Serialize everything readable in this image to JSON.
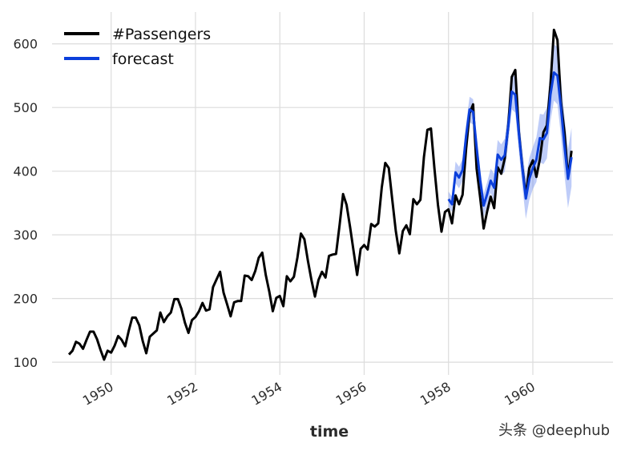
{
  "chart_data": {
    "type": "line",
    "title": "",
    "xlabel": "time",
    "ylabel": "",
    "xlim": [
      1948.6,
      1961.9
    ],
    "ylim": [
      80,
      650
    ],
    "grid": true,
    "legend_position": "top-left",
    "x_ticks": [
      1950,
      1952,
      1954,
      1956,
      1958,
      1960
    ],
    "x_tick_labels": [
      "1950",
      "1952",
      "1954",
      "1956",
      "1958",
      "1960"
    ],
    "y_ticks": [
      100,
      200,
      300,
      400,
      500,
      600
    ],
    "y_tick_labels": [
      "100",
      "200",
      "300",
      "400",
      "500",
      "600"
    ],
    "colors": {
      "passengers": "#000000",
      "forecast": "#0b3fdb",
      "band": "#6f8ef0"
    },
    "series": [
      {
        "name": "#Passengers",
        "start_year": 1949,
        "monthly_values": [
          112,
          118,
          132,
          129,
          121,
          135,
          148,
          148,
          136,
          119,
          104,
          118,
          115,
          126,
          141,
          135,
          125,
          149,
          170,
          170,
          158,
          133,
          114,
          140,
          145,
          150,
          178,
          163,
          172,
          178,
          199,
          199,
          184,
          162,
          146,
          166,
          171,
          180,
          193,
          181,
          183,
          218,
          230,
          242,
          209,
          191,
          172,
          194,
          196,
          196,
          236,
          235,
          229,
          243,
          264,
          272,
          237,
          211,
          180,
          201,
          204,
          188,
          235,
          227,
          234,
          264,
          302,
          293,
          259,
          229,
          203,
          229,
          242,
          233,
          267,
          269,
          270,
          315,
          364,
          347,
          312,
          274,
          237,
          278,
          284,
          277,
          317,
          313,
          318,
          374,
          413,
          405,
          355,
          306,
          271,
          306,
          315,
          301,
          356,
          348,
          355,
          422,
          465,
          467,
          404,
          347,
          305,
          336,
          340,
          318,
          362,
          348,
          363,
          435,
          491,
          505,
          404,
          359,
          310,
          337,
          360,
          342,
          406,
          396,
          420,
          472,
          548,
          559,
          463,
          407,
          362,
          405,
          417,
          391,
          419,
          461,
          472,
          535,
          622,
          606,
          508,
          461,
          390,
          432
        ]
      },
      {
        "name": "forecast",
        "start_year": 1958,
        "monthly_values": [
          356,
          348,
          398,
          390,
          402,
          455,
          497,
          493,
          437,
          386,
          346,
          364,
          385,
          374,
          426,
          418,
          425,
          470,
          525,
          520,
          460,
          405,
          357,
          388,
          405,
          418,
          452,
          450,
          460,
          520,
          555,
          550,
          500,
          440,
          388,
          422
        ],
        "lower": [
          344,
          336,
          381,
          373,
          385,
          436,
          477,
          473,
          418,
          368,
          328,
          345,
          366,
          352,
          403,
          394,
          399,
          444,
          497,
          492,
          432,
          377,
          325,
          355,
          372,
          383,
          414,
          411,
          420,
          478,
          511,
          505,
          455,
          394,
          342,
          376
        ],
        "upper": [
          368,
          360,
          415,
          407,
          419,
          474,
          517,
          513,
          456,
          404,
          364,
          383,
          404,
          396,
          449,
          442,
          451,
          496,
          553,
          548,
          488,
          433,
          389,
          421,
          438,
          453,
          490,
          489,
          500,
          562,
          599,
          595,
          545,
          486,
          434,
          468
        ]
      }
    ]
  },
  "watermark": "头条 @deephub"
}
